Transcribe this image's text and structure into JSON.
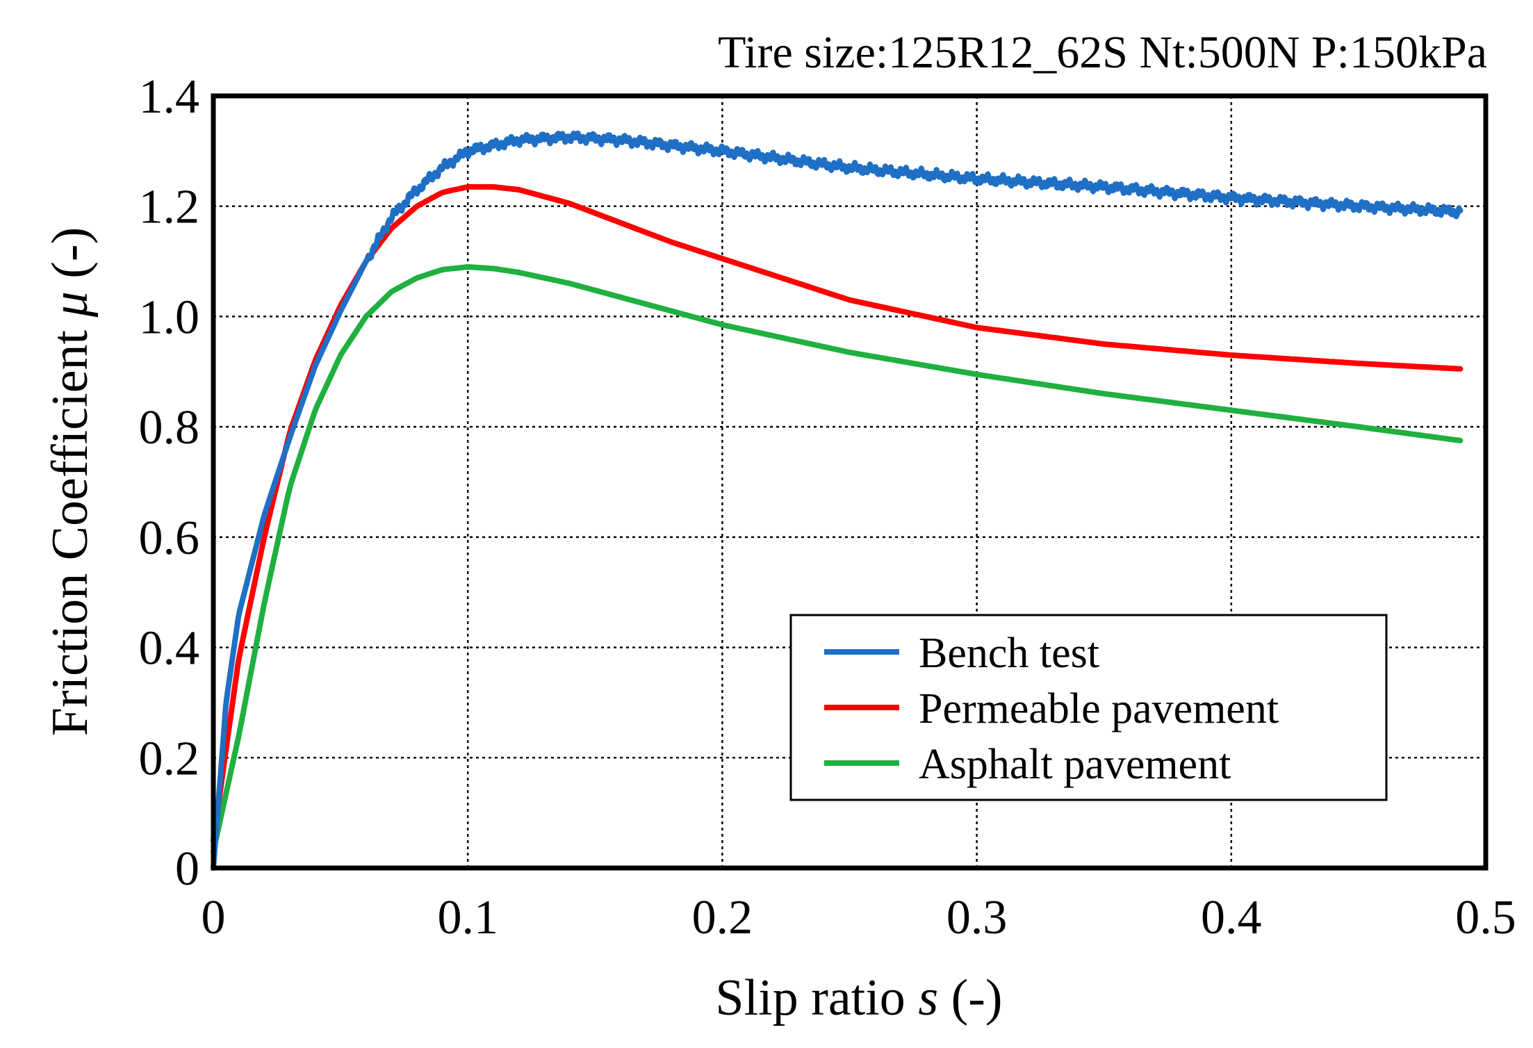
{
  "chart_data": {
    "type": "line",
    "title": "Tire size:125R12_62S  Nt:500N  P:150kPa",
    "xlabel": {
      "prefix": "Slip ratio ",
      "symbol": "s",
      "suffix": " (-)"
    },
    "ylabel": {
      "prefix": "Friction Coefficient ",
      "symbol": "μ",
      "suffix": " (-)"
    },
    "xlim": [
      0,
      0.5
    ],
    "ylim": [
      0,
      1.4
    ],
    "xticks": [
      0,
      0.1,
      0.2,
      0.3,
      0.4,
      0.5
    ],
    "xtick_labels": [
      "0",
      "0.1",
      "0.2",
      "0.3",
      "0.4",
      "0.5"
    ],
    "yticks": [
      0,
      0.2,
      0.4,
      0.6,
      0.8,
      1.0,
      1.2,
      1.4
    ],
    "ytick_labels": [
      "0",
      "0.2",
      "0.4",
      "0.6",
      "0.8",
      "1.0",
      "1.2",
      "1.4"
    ],
    "grid": true,
    "legend_position": "lower-right",
    "series": [
      {
        "name": "Bench test",
        "color": "#1f6fc5",
        "noisy": true,
        "x": [
          0,
          0.005,
          0.01,
          0.02,
          0.03,
          0.04,
          0.05,
          0.06,
          0.07,
          0.08,
          0.09,
          0.1,
          0.11,
          0.12,
          0.14,
          0.16,
          0.18,
          0.2,
          0.25,
          0.3,
          0.35,
          0.4,
          0.45,
          0.49
        ],
        "y": [
          0,
          0.3,
          0.46,
          0.64,
          0.78,
          0.91,
          1.01,
          1.1,
          1.18,
          1.23,
          1.27,
          1.3,
          1.31,
          1.32,
          1.325,
          1.32,
          1.31,
          1.3,
          1.27,
          1.25,
          1.235,
          1.215,
          1.2,
          1.19
        ]
      },
      {
        "name": "Permeable pavement",
        "color": "#ff0000",
        "noisy": false,
        "x": [
          0,
          0.01,
          0.02,
          0.03,
          0.04,
          0.05,
          0.06,
          0.07,
          0.08,
          0.09,
          0.1,
          0.11,
          0.12,
          0.14,
          0.16,
          0.18,
          0.2,
          0.25,
          0.3,
          0.35,
          0.4,
          0.45,
          0.49
        ],
        "y": [
          0.05,
          0.38,
          0.6,
          0.79,
          0.92,
          1.02,
          1.1,
          1.16,
          1.2,
          1.225,
          1.235,
          1.235,
          1.23,
          1.205,
          1.17,
          1.135,
          1.105,
          1.03,
          0.98,
          0.95,
          0.93,
          0.915,
          0.905
        ]
      },
      {
        "name": "Asphalt pavement",
        "color": "#1fb040",
        "noisy": false,
        "x": [
          0,
          0.01,
          0.02,
          0.03,
          0.04,
          0.05,
          0.06,
          0.07,
          0.08,
          0.09,
          0.1,
          0.11,
          0.12,
          0.14,
          0.16,
          0.18,
          0.2,
          0.25,
          0.3,
          0.35,
          0.4,
          0.45,
          0.49
        ],
        "y": [
          0.03,
          0.24,
          0.48,
          0.69,
          0.83,
          0.93,
          1.0,
          1.045,
          1.07,
          1.085,
          1.09,
          1.087,
          1.08,
          1.06,
          1.035,
          1.01,
          0.985,
          0.935,
          0.895,
          0.86,
          0.83,
          0.8,
          0.775
        ]
      }
    ]
  }
}
